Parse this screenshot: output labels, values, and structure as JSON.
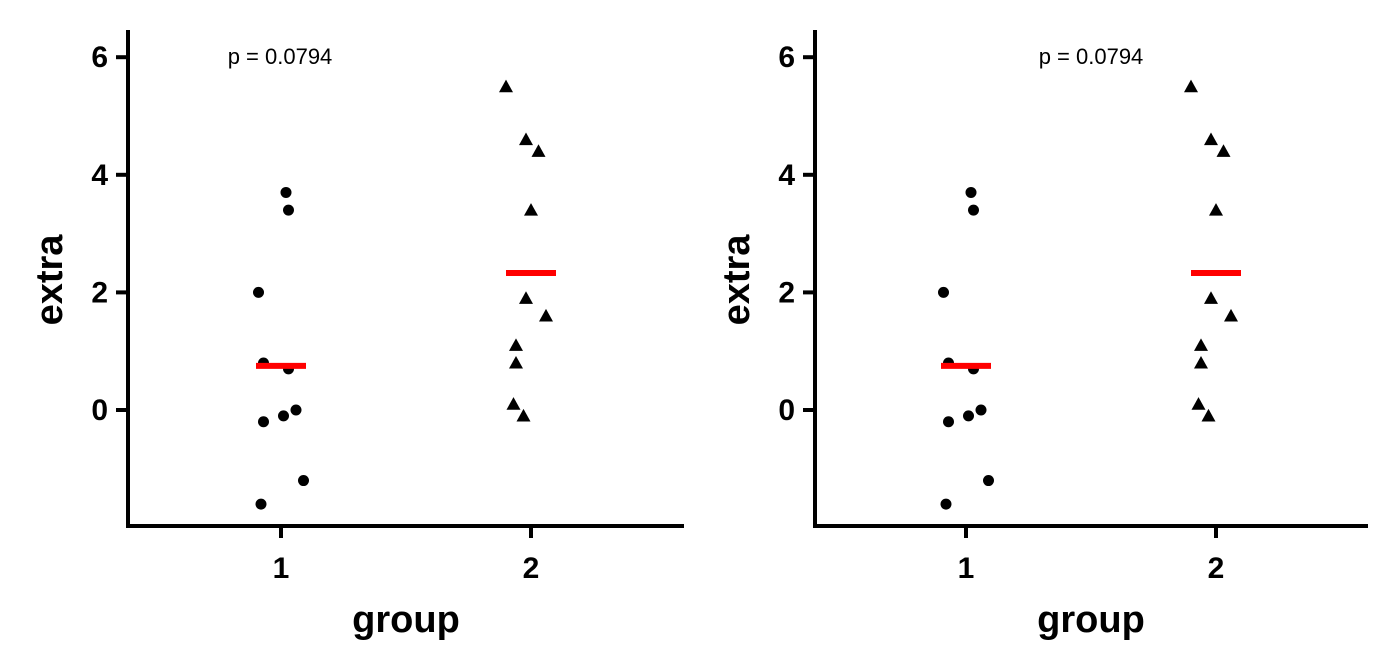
{
  "chart_data": [
    {
      "type": "scatter",
      "title": "",
      "xlabel": "group",
      "ylabel": "extra",
      "categories": [
        "1",
        "2"
      ],
      "yticks": [
        "0",
        "2",
        "4",
        "6"
      ],
      "ylim": [
        -2.0,
        6.4
      ],
      "annotation": "p = 0.0794",
      "mean_line_color": "#ff0000",
      "point_color": "#000000",
      "groups": [
        {
          "category": "1",
          "marker": "circle",
          "mean": 0.75,
          "points": [
            {
              "x": 1.02,
              "y": 3.7
            },
            {
              "x": 1.03,
              "y": 3.4
            },
            {
              "x": 0.91,
              "y": 2.0
            },
            {
              "x": 0.93,
              "y": 0.8
            },
            {
              "x": 1.03,
              "y": 0.7
            },
            {
              "x": 1.06,
              "y": 0.0
            },
            {
              "x": 1.01,
              "y": -0.1
            },
            {
              "x": 0.93,
              "y": -0.2
            },
            {
              "x": 1.09,
              "y": -1.2
            },
            {
              "x": 0.92,
              "y": -1.6
            }
          ]
        },
        {
          "category": "2",
          "marker": "triangle",
          "mean": 2.33,
          "points": [
            {
              "x": 1.9,
              "y": 5.5
            },
            {
              "x": 1.98,
              "y": 4.6
            },
            {
              "x": 2.03,
              "y": 4.4
            },
            {
              "x": 2.0,
              "y": 3.4
            },
            {
              "x": 1.98,
              "y": 1.9
            },
            {
              "x": 2.06,
              "y": 1.6
            },
            {
              "x": 1.94,
              "y": 1.1
            },
            {
              "x": 1.94,
              "y": 0.8
            },
            {
              "x": 1.93,
              "y": 0.1
            },
            {
              "x": 1.97,
              "y": -0.1
            }
          ]
        }
      ]
    },
    {
      "type": "scatter",
      "title": "",
      "xlabel": "group",
      "ylabel": "extra",
      "categories": [
        "1",
        "2"
      ],
      "yticks": [
        "0",
        "2",
        "4",
        "6"
      ],
      "ylim": [
        -2.0,
        6.4
      ],
      "annotation": "p = 0.0794",
      "mean_line_color": "#ff0000",
      "point_color": "#000000",
      "groups": [
        {
          "category": "1",
          "marker": "circle",
          "mean": 0.75,
          "points": [
            {
              "x": 1.02,
              "y": 3.7
            },
            {
              "x": 1.03,
              "y": 3.4
            },
            {
              "x": 0.91,
              "y": 2.0
            },
            {
              "x": 0.93,
              "y": 0.8
            },
            {
              "x": 1.03,
              "y": 0.7
            },
            {
              "x": 1.06,
              "y": 0.0
            },
            {
              "x": 1.01,
              "y": -0.1
            },
            {
              "x": 0.93,
              "y": -0.2
            },
            {
              "x": 1.09,
              "y": -1.2
            },
            {
              "x": 0.92,
              "y": -1.6
            }
          ]
        },
        {
          "category": "2",
          "marker": "triangle",
          "mean": 2.33,
          "points": [
            {
              "x": 1.9,
              "y": 5.5
            },
            {
              "x": 1.98,
              "y": 4.6
            },
            {
              "x": 2.03,
              "y": 4.4
            },
            {
              "x": 2.0,
              "y": 3.4
            },
            {
              "x": 1.98,
              "y": 1.9
            },
            {
              "x": 2.06,
              "y": 1.6
            },
            {
              "x": 1.94,
              "y": 1.1
            },
            {
              "x": 1.94,
              "y": 0.8
            },
            {
              "x": 1.93,
              "y": 0.1
            },
            {
              "x": 1.97,
              "y": -0.1
            }
          ]
        }
      ]
    }
  ]
}
